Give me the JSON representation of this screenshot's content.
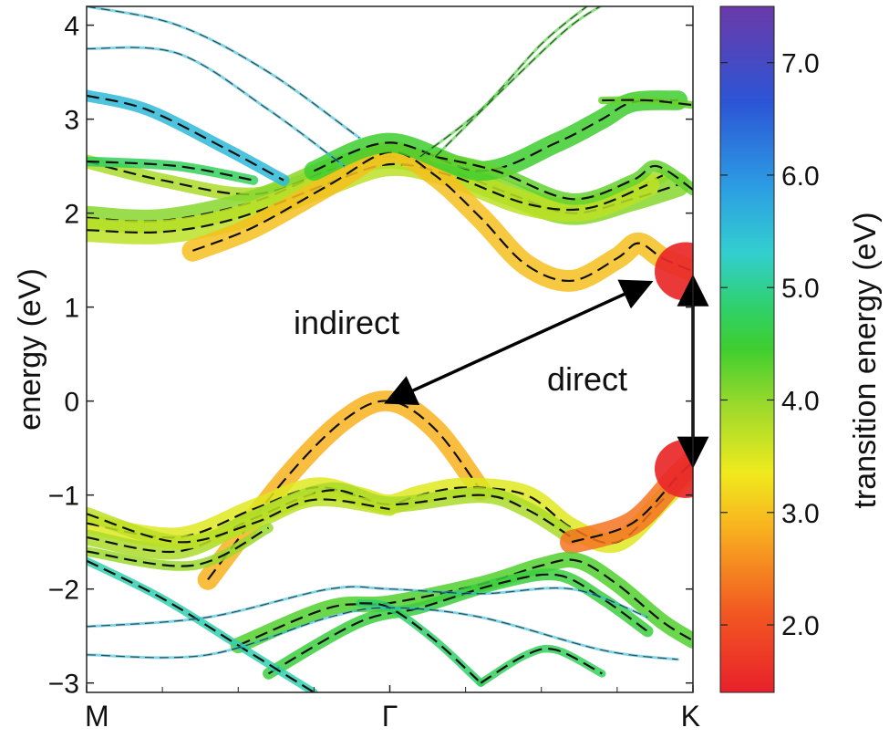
{
  "chart_data": {
    "type": "line",
    "title": "",
    "xlabel": "",
    "ylabel": "energy (eV)",
    "x_ticks": [
      "M",
      "Γ",
      "K"
    ],
    "x_positions": [
      0,
      1,
      2
    ],
    "xlim": [
      0,
      2
    ],
    "ylim": [
      -3.1,
      4.2
    ],
    "y_ticks": [
      -3,
      -2,
      -1,
      0,
      1,
      2,
      3,
      4
    ],
    "y_tick_labels": [
      "−3",
      "−2",
      "−1",
      "0",
      "1",
      "2",
      "3",
      "4"
    ],
    "grid": false,
    "colorbar": {
      "label": "transition energy (eV)",
      "range": [
        1.4,
        7.5
      ],
      "ticks": [
        2.0,
        3.0,
        4.0,
        5.0,
        6.0,
        7.0
      ],
      "tick_labels": [
        "2.0",
        "3.0",
        "4.0",
        "5.0",
        "6.0",
        "7.0"
      ]
    },
    "annotations": [
      {
        "text": "indirect",
        "from": [
          1.85,
          1.25
        ],
        "to": [
          1.0,
          0.0
        ]
      },
      {
        "text": "direct",
        "from": [
          2.0,
          1.28
        ],
        "to": [
          2.0,
          -0.65
        ]
      }
    ],
    "series": [
      {
        "values": [
          [
            0,
            2.55
          ],
          [
            0.25,
            2.35
          ],
          [
            0.55,
            2.2
          ],
          [
            0.8,
            2.45
          ],
          [
            1.0,
            2.6
          ],
          [
            1.25,
            2.45
          ],
          [
            1.5,
            2.05
          ],
          [
            1.75,
            2.2
          ],
          [
            1.9,
            2.4
          ]
        ],
        "weight": 0.5,
        "color": 3.6
      },
      {
        "values": [
          [
            0,
            1.95
          ],
          [
            0.25,
            1.92
          ],
          [
            0.55,
            2.12
          ],
          [
            0.8,
            2.45
          ],
          [
            1.0,
            2.6
          ],
          [
            1.2,
            2.45
          ],
          [
            1.4,
            2.2
          ],
          [
            1.6,
            2.0
          ],
          [
            1.8,
            2.15
          ],
          [
            1.95,
            2.3
          ]
        ],
        "weight": 1.0,
        "color": 3.8
      },
      {
        "values": [
          [
            0,
            1.82
          ],
          [
            0.25,
            1.8
          ],
          [
            0.5,
            1.95
          ],
          [
            0.8,
            2.32
          ],
          [
            1.0,
            2.52
          ],
          [
            1.2,
            2.4
          ],
          [
            1.45,
            2.1
          ],
          [
            1.65,
            2.05
          ],
          [
            1.85,
            2.3
          ]
        ],
        "weight": 1.0,
        "color": 3.5
      },
      {
        "values": [
          [
            0.35,
            1.6
          ],
          [
            0.55,
            1.85
          ],
          [
            0.8,
            2.3
          ],
          [
            1.0,
            2.65
          ],
          [
            1.15,
            2.4
          ],
          [
            1.3,
            1.95
          ],
          [
            1.45,
            1.45
          ],
          [
            1.6,
            1.28
          ],
          [
            1.75,
            1.52
          ],
          [
            1.82,
            1.68
          ],
          [
            1.9,
            1.52
          ],
          [
            2.0,
            1.38
          ]
        ],
        "weight": 0.9,
        "color": 2.9
      },
      {
        "values": [
          [
            0.75,
            2.45
          ],
          [
            1.0,
            2.75
          ],
          [
            1.3,
            2.45
          ],
          [
            1.55,
            2.75
          ],
          [
            1.7,
            3.0
          ],
          [
            1.8,
            3.18
          ],
          [
            1.95,
            3.2
          ]
        ],
        "weight": 0.8,
        "color": 4.2
      },
      {
        "values": [
          [
            1.15,
            2.6
          ],
          [
            1.35,
            2.45
          ],
          [
            1.6,
            2.15
          ],
          [
            1.8,
            2.35
          ],
          [
            1.88,
            2.5
          ],
          [
            2.0,
            2.25
          ]
        ],
        "weight": 0.4,
        "color": 4.0
      },
      {
        "values": [
          [
            0,
            3.25
          ],
          [
            0.2,
            3.1
          ],
          [
            0.45,
            2.7
          ],
          [
            0.65,
            2.35
          ]
        ],
        "weight": 0.4,
        "color": 5.5
      },
      {
        "values": [
          [
            0,
            2.55
          ],
          [
            0.3,
            2.5
          ],
          [
            0.55,
            2.35
          ]
        ],
        "weight": 0.3,
        "color": 4.5
      },
      {
        "values": [
          [
            0,
            4.2
          ],
          [
            0.3,
            4.0
          ],
          [
            0.6,
            3.5
          ],
          [
            0.9,
            2.8
          ]
        ],
        "weight": 0.1,
        "color": 5.5
      },
      {
        "values": [
          [
            0,
            3.75
          ],
          [
            0.3,
            3.7
          ],
          [
            0.6,
            3.1
          ],
          [
            0.85,
            2.5
          ]
        ],
        "weight": 0.1,
        "color": 5.5
      },
      {
        "values": [
          [
            1.1,
            2.6
          ],
          [
            1.3,
            3.1
          ],
          [
            1.5,
            3.8
          ],
          [
            1.65,
            4.2
          ]
        ],
        "weight": 0.1,
        "color": 4.2
      },
      {
        "values": [
          [
            1.15,
            2.6
          ],
          [
            1.4,
            3.4
          ],
          [
            1.6,
            4.0
          ],
          [
            1.75,
            4.3
          ]
        ],
        "weight": 0.1,
        "color": 4.2
      },
      {
        "values": [
          [
            1.7,
            3.2
          ],
          [
            1.85,
            3.2
          ],
          [
            2.0,
            3.15
          ]
        ],
        "weight": 0.2,
        "color": 4.0
      },
      {
        "values": [
          [
            0.4,
            -1.9
          ],
          [
            0.65,
            -0.85
          ],
          [
            0.85,
            -0.2
          ],
          [
            1.0,
            0.0
          ],
          [
            1.15,
            -0.3
          ],
          [
            1.3,
            -0.95
          ]
        ],
        "weight": 0.85,
        "color": 2.8
      },
      {
        "values": [
          [
            0,
            -1.3
          ],
          [
            0.3,
            -1.45
          ],
          [
            0.55,
            -1.15
          ],
          [
            0.75,
            -0.92
          ],
          [
            0.9,
            -1.02
          ],
          [
            1.0,
            -1.1
          ],
          [
            1.1,
            -1.0
          ],
          [
            1.25,
            -0.92
          ],
          [
            1.45,
            -1.0
          ],
          [
            1.6,
            -1.35
          ],
          [
            1.75,
            -1.5
          ],
          [
            1.9,
            -1.05
          ],
          [
            2.0,
            -0.72
          ]
        ],
        "weight": 0.8,
        "color": 3.3
      },
      {
        "values": [
          [
            0,
            -1.45
          ],
          [
            0.3,
            -1.6
          ],
          [
            0.55,
            -1.25
          ],
          [
            0.8,
            -0.95
          ],
          [
            1.0,
            -1.1
          ],
          [
            1.3,
            -1.0
          ],
          [
            1.45,
            -1.15
          ],
          [
            1.6,
            -1.45
          ]
        ],
        "weight": 0.6,
        "color": 3.6
      },
      {
        "values": [
          [
            0,
            -1.2
          ],
          [
            0.3,
            -1.5
          ],
          [
            0.55,
            -1.3
          ],
          [
            0.75,
            -1.05
          ],
          [
            1.0,
            -1.15
          ]
        ],
        "weight": 0.5,
        "color": 3.5
      },
      {
        "values": [
          [
            0,
            -1.6
          ],
          [
            0.35,
            -1.75
          ],
          [
            0.6,
            -1.35
          ]
        ],
        "weight": 0.3,
        "color": 3.7
      },
      {
        "values": [
          [
            1.6,
            -1.5
          ],
          [
            1.8,
            -1.3
          ],
          [
            1.95,
            -0.8
          ],
          [
            2.0,
            -0.65
          ]
        ],
        "weight": 1.0,
        "color": 2.3
      },
      {
        "values": [
          [
            0.5,
            -2.6
          ],
          [
            0.8,
            -2.2
          ],
          [
            1.0,
            -2.15
          ],
          [
            1.3,
            -1.95
          ],
          [
            1.5,
            -1.75
          ],
          [
            1.62,
            -1.7
          ],
          [
            1.75,
            -1.95
          ],
          [
            1.9,
            -2.35
          ],
          [
            2.0,
            -2.55
          ]
        ],
        "weight": 0.6,
        "color": 4.1
      },
      {
        "values": [
          [
            0.6,
            -2.9
          ],
          [
            0.9,
            -2.35
          ],
          [
            1.1,
            -2.2
          ],
          [
            1.35,
            -1.95
          ],
          [
            1.55,
            -1.85
          ],
          [
            1.7,
            -2.1
          ],
          [
            1.85,
            -2.45
          ]
        ],
        "weight": 0.4,
        "color": 4.3
      },
      {
        "values": [
          [
            0,
            -1.7
          ],
          [
            0.25,
            -2.1
          ],
          [
            0.5,
            -2.6
          ],
          [
            0.75,
            -3.1
          ]
        ],
        "weight": 0.2,
        "color": 5.0
      },
      {
        "values": [
          [
            0.9,
            -2.15
          ],
          [
            1.0,
            -2.2
          ],
          [
            1.15,
            -2.55
          ],
          [
            1.3,
            -3.0
          ]
        ],
        "weight": 0.2,
        "color": 4.6
      },
      {
        "values": [
          [
            1.3,
            -3.0
          ],
          [
            1.45,
            -2.7
          ],
          [
            1.55,
            -2.65
          ],
          [
            1.7,
            -2.9
          ]
        ],
        "weight": 0.2,
        "color": 4.5
      },
      {
        "values": [
          [
            0,
            -2.4
          ],
          [
            0.4,
            -2.3
          ],
          [
            0.8,
            -2.0
          ],
          [
            1.0,
            -2.0
          ],
          [
            1.3,
            -2.05
          ],
          [
            1.6,
            -2.0
          ],
          [
            1.85,
            -2.3
          ]
        ],
        "weight": 0.05,
        "color": 5.5
      },
      {
        "values": [
          [
            0,
            -2.7
          ],
          [
            0.4,
            -2.7
          ],
          [
            0.8,
            -2.3
          ],
          [
            1.0,
            -2.2
          ],
          [
            1.3,
            -2.3
          ],
          [
            1.7,
            -2.65
          ],
          [
            1.95,
            -2.75
          ]
        ],
        "weight": 0.05,
        "color": 5.5
      }
    ]
  }
}
